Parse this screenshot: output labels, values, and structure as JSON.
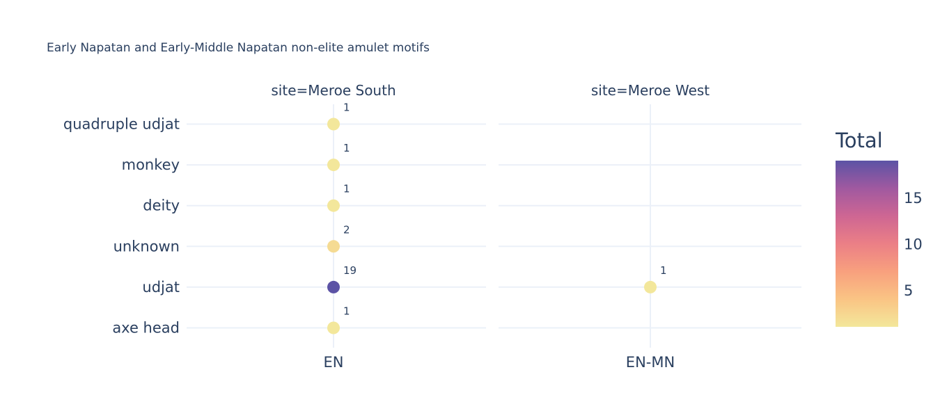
{
  "chart_data": {
    "type": "scatter",
    "title": "Early Napatan and Early-Middle Napatan non-elite amulet motifs",
    "categories_y": [
      "axe head",
      "udjat",
      "unknown",
      "deity",
      "monkey",
      "quadruple udjat"
    ],
    "facets": [
      {
        "label": "site=Meroe South",
        "x_category": "EN",
        "points": [
          {
            "y": "quadruple udjat",
            "total": 1
          },
          {
            "y": "monkey",
            "total": 1
          },
          {
            "y": "deity",
            "total": 1
          },
          {
            "y": "unknown",
            "total": 2
          },
          {
            "y": "udjat",
            "total": 19
          },
          {
            "y": "axe head",
            "total": 1
          }
        ]
      },
      {
        "label": "site=Meroe West",
        "x_category": "EN-MN",
        "points": [
          {
            "y": "udjat",
            "total": 1
          }
        ]
      }
    ],
    "colorbar": {
      "title": "Total",
      "min": 1,
      "max": 19,
      "ticks": [
        5,
        10,
        15
      ],
      "colors": [
        "#f3e79b",
        "#fac484",
        "#f8a07e",
        "#eb7f86",
        "#ce6693",
        "#a059a0",
        "#5c53a5"
      ]
    },
    "grid": true,
    "legend_position": "right"
  }
}
